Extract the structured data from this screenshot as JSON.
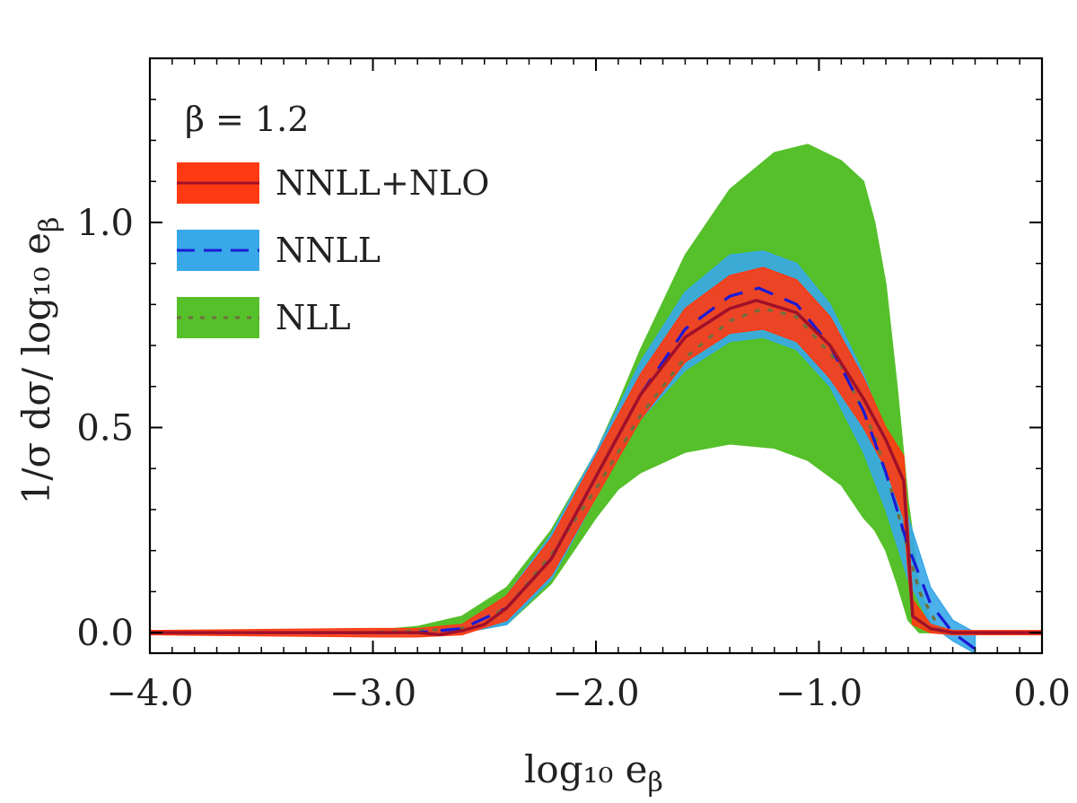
{
  "chart_data": {
    "type": "line",
    "title": "",
    "xlabel": "log₁₀ e",
    "xlabel_sub": "β",
    "ylabel": "1/σ dσ/ log₁₀ e",
    "ylabel_sub": "β",
    "xlim": [
      -4.0,
      0.0
    ],
    "ylim": [
      -0.05,
      1.4
    ],
    "grid": false,
    "legend_position": "top-left",
    "annotation": "β = 1.2",
    "x_ticks": [
      {
        "value": -4.0,
        "label": "−4.0"
      },
      {
        "value": -3.0,
        "label": "−3.0"
      },
      {
        "value": -2.0,
        "label": "−2.0"
      },
      {
        "value": -1.0,
        "label": "−1.0"
      },
      {
        "value": 0.0,
        "label": "0.0"
      }
    ],
    "y_ticks": [
      {
        "value": 0.0,
        "label": "0.0"
      },
      {
        "value": 0.5,
        "label": "0.5"
      },
      {
        "value": 1.0,
        "label": "1.0"
      }
    ],
    "series": [
      {
        "name": "NLL",
        "line_color": "#6f6f3c",
        "band_color": "#55c02a",
        "line_style": "dotted",
        "band": [
          {
            "x": -4.0,
            "lo": 0.0,
            "hi": 0.0
          },
          {
            "x": -3.4,
            "lo": 0.0,
            "hi": 0.0
          },
          {
            "x": -3.0,
            "lo": 0.0,
            "hi": 0.005
          },
          {
            "x": -2.8,
            "lo": 0.0,
            "hi": 0.015
          },
          {
            "x": -2.6,
            "lo": 0.0,
            "hi": 0.04
          },
          {
            "x": -2.4,
            "lo": 0.02,
            "hi": 0.11
          },
          {
            "x": -2.2,
            "lo": 0.12,
            "hi": 0.25
          },
          {
            "x": -2.0,
            "lo": 0.28,
            "hi": 0.44
          },
          {
            "x": -1.9,
            "lo": 0.35,
            "hi": 0.56
          },
          {
            "x": -1.8,
            "lo": 0.39,
            "hi": 0.69
          },
          {
            "x": -1.6,
            "lo": 0.44,
            "hi": 0.92
          },
          {
            "x": -1.4,
            "lo": 0.46,
            "hi": 1.08
          },
          {
            "x": -1.2,
            "lo": 0.45,
            "hi": 1.17
          },
          {
            "x": -1.05,
            "lo": 0.42,
            "hi": 1.19
          },
          {
            "x": -0.9,
            "lo": 0.36,
            "hi": 1.15
          },
          {
            "x": -0.8,
            "lo": 0.28,
            "hi": 1.1
          },
          {
            "x": -0.75,
            "lo": 0.25,
            "hi": 1.0
          },
          {
            "x": -0.7,
            "lo": 0.2,
            "hi": 0.85
          },
          {
            "x": -0.65,
            "lo": 0.12,
            "hi": 0.6
          },
          {
            "x": -0.6,
            "lo": 0.03,
            "hi": 0.32
          },
          {
            "x": -0.55,
            "lo": 0.0,
            "hi": 0.12
          },
          {
            "x": -0.5,
            "lo": 0.0,
            "hi": 0.03
          },
          {
            "x": -0.45,
            "lo": 0.0,
            "hi": 0.0
          }
        ],
        "line": [
          {
            "x": -4.0,
            "y": 0.0
          },
          {
            "x": -3.0,
            "y": 0.0
          },
          {
            "x": -2.6,
            "y": 0.01
          },
          {
            "x": -2.4,
            "y": 0.06
          },
          {
            "x": -2.2,
            "y": 0.19
          },
          {
            "x": -2.0,
            "y": 0.35
          },
          {
            "x": -1.8,
            "y": 0.53
          },
          {
            "x": -1.6,
            "y": 0.67
          },
          {
            "x": -1.4,
            "y": 0.76
          },
          {
            "x": -1.25,
            "y": 0.79
          },
          {
            "x": -1.1,
            "y": 0.77
          },
          {
            "x": -0.9,
            "y": 0.65
          },
          {
            "x": -0.75,
            "y": 0.48
          },
          {
            "x": -0.65,
            "y": 0.3
          },
          {
            "x": -0.55,
            "y": 0.1
          },
          {
            "x": -0.45,
            "y": 0.0
          },
          {
            "x": 0.0,
            "y": 0.0
          }
        ]
      },
      {
        "name": "NNLL",
        "line_color": "#1a1ad6",
        "band_color": "#38a8e8",
        "line_style": "dashed",
        "band": [
          {
            "x": -4.0,
            "lo": 0.0,
            "hi": 0.0
          },
          {
            "x": -2.8,
            "lo": 0.0,
            "hi": 0.005
          },
          {
            "x": -2.6,
            "lo": 0.0,
            "hi": 0.02
          },
          {
            "x": -2.4,
            "lo": 0.02,
            "hi": 0.09
          },
          {
            "x": -2.2,
            "lo": 0.13,
            "hi": 0.24
          },
          {
            "x": -2.0,
            "lo": 0.33,
            "hi": 0.44
          },
          {
            "x": -1.8,
            "lo": 0.52,
            "hi": 0.66
          },
          {
            "x": -1.6,
            "lo": 0.64,
            "hi": 0.83
          },
          {
            "x": -1.4,
            "lo": 0.71,
            "hi": 0.92
          },
          {
            "x": -1.25,
            "lo": 0.72,
            "hi": 0.93
          },
          {
            "x": -1.1,
            "lo": 0.69,
            "hi": 0.9
          },
          {
            "x": -0.95,
            "lo": 0.6,
            "hi": 0.8
          },
          {
            "x": -0.8,
            "lo": 0.44,
            "hi": 0.63
          },
          {
            "x": -0.7,
            "lo": 0.3,
            "hi": 0.48
          },
          {
            "x": -0.6,
            "lo": 0.13,
            "hi": 0.28
          },
          {
            "x": -0.5,
            "lo": 0.02,
            "hi": 0.11
          },
          {
            "x": -0.4,
            "lo": -0.02,
            "hi": 0.03
          },
          {
            "x": -0.3,
            "lo": -0.05,
            "hi": 0.0
          }
        ],
        "line": [
          {
            "x": -4.0,
            "y": 0.0
          },
          {
            "x": -2.8,
            "y": 0.0
          },
          {
            "x": -2.6,
            "y": 0.01
          },
          {
            "x": -2.4,
            "y": 0.06
          },
          {
            "x": -2.2,
            "y": 0.18
          },
          {
            "x": -2.0,
            "y": 0.38
          },
          {
            "x": -1.8,
            "y": 0.58
          },
          {
            "x": -1.6,
            "y": 0.74
          },
          {
            "x": -1.4,
            "y": 0.82
          },
          {
            "x": -1.27,
            "y": 0.84
          },
          {
            "x": -1.1,
            "y": 0.8
          },
          {
            "x": -0.95,
            "y": 0.7
          },
          {
            "x": -0.8,
            "y": 0.54
          },
          {
            "x": -0.7,
            "y": 0.39
          },
          {
            "x": -0.6,
            "y": 0.21
          },
          {
            "x": -0.5,
            "y": 0.07
          },
          {
            "x": -0.4,
            "y": 0.0
          },
          {
            "x": -0.3,
            "y": -0.04
          }
        ]
      },
      {
        "name": "NNLL+NLO",
        "line_color": "#a0102a",
        "band_color": "#ff3a12",
        "line_style": "solid",
        "band": [
          {
            "x": -4.0,
            "lo": -0.005,
            "hi": 0.005
          },
          {
            "x": -3.0,
            "lo": -0.01,
            "hi": 0.01
          },
          {
            "x": -2.8,
            "lo": -0.01,
            "hi": 0.01
          },
          {
            "x": -2.6,
            "lo": -0.005,
            "hi": 0.02
          },
          {
            "x": -2.4,
            "lo": 0.03,
            "hi": 0.09
          },
          {
            "x": -2.2,
            "lo": 0.14,
            "hi": 0.23
          },
          {
            "x": -2.0,
            "lo": 0.33,
            "hi": 0.43
          },
          {
            "x": -1.8,
            "lo": 0.52,
            "hi": 0.63
          },
          {
            "x": -1.6,
            "lo": 0.66,
            "hi": 0.79
          },
          {
            "x": -1.4,
            "lo": 0.73,
            "hi": 0.87
          },
          {
            "x": -1.25,
            "lo": 0.74,
            "hi": 0.89
          },
          {
            "x": -1.1,
            "lo": 0.71,
            "hi": 0.86
          },
          {
            "x": -0.95,
            "lo": 0.62,
            "hi": 0.77
          },
          {
            "x": -0.8,
            "lo": 0.5,
            "hi": 0.62
          },
          {
            "x": -0.7,
            "lo": 0.4,
            "hi": 0.5
          },
          {
            "x": -0.62,
            "lo": 0.28,
            "hi": 0.43
          },
          {
            "x": -0.58,
            "lo": 0.02,
            "hi": 0.08
          },
          {
            "x": -0.5,
            "lo": 0.0,
            "hi": 0.02
          },
          {
            "x": -0.4,
            "lo": -0.005,
            "hi": 0.005
          },
          {
            "x": 0.0,
            "lo": -0.005,
            "hi": 0.005
          }
        ],
        "line": [
          {
            "x": -4.0,
            "y": 0.0
          },
          {
            "x": -3.8,
            "y": 0.0
          },
          {
            "x": -3.6,
            "y": 0.0
          },
          {
            "x": -3.4,
            "y": 0.0
          },
          {
            "x": -3.2,
            "y": 0.0
          },
          {
            "x": -3.0,
            "y": 0.0
          },
          {
            "x": -2.8,
            "y": 0.0
          },
          {
            "x": -2.7,
            "y": -0.005
          },
          {
            "x": -2.6,
            "y": 0.005
          },
          {
            "x": -2.5,
            "y": 0.02
          },
          {
            "x": -2.4,
            "y": 0.06
          },
          {
            "x": -2.2,
            "y": 0.18
          },
          {
            "x": -2.0,
            "y": 0.38
          },
          {
            "x": -1.8,
            "y": 0.58
          },
          {
            "x": -1.6,
            "y": 0.72
          },
          {
            "x": -1.4,
            "y": 0.79
          },
          {
            "x": -1.28,
            "y": 0.81
          },
          {
            "x": -1.1,
            "y": 0.78
          },
          {
            "x": -0.95,
            "y": 0.7
          },
          {
            "x": -0.8,
            "y": 0.57
          },
          {
            "x": -0.7,
            "y": 0.47
          },
          {
            "x": -0.62,
            "y": 0.37
          },
          {
            "x": -0.58,
            "y": 0.04
          },
          {
            "x": -0.5,
            "y": 0.01
          },
          {
            "x": -0.4,
            "y": 0.0
          },
          {
            "x": -0.2,
            "y": 0.0
          },
          {
            "x": 0.0,
            "y": 0.0
          }
        ]
      }
    ],
    "legend": [
      {
        "label": "NNLL+NLO"
      },
      {
        "label": "NNLL"
      },
      {
        "label": "NLL"
      }
    ]
  }
}
